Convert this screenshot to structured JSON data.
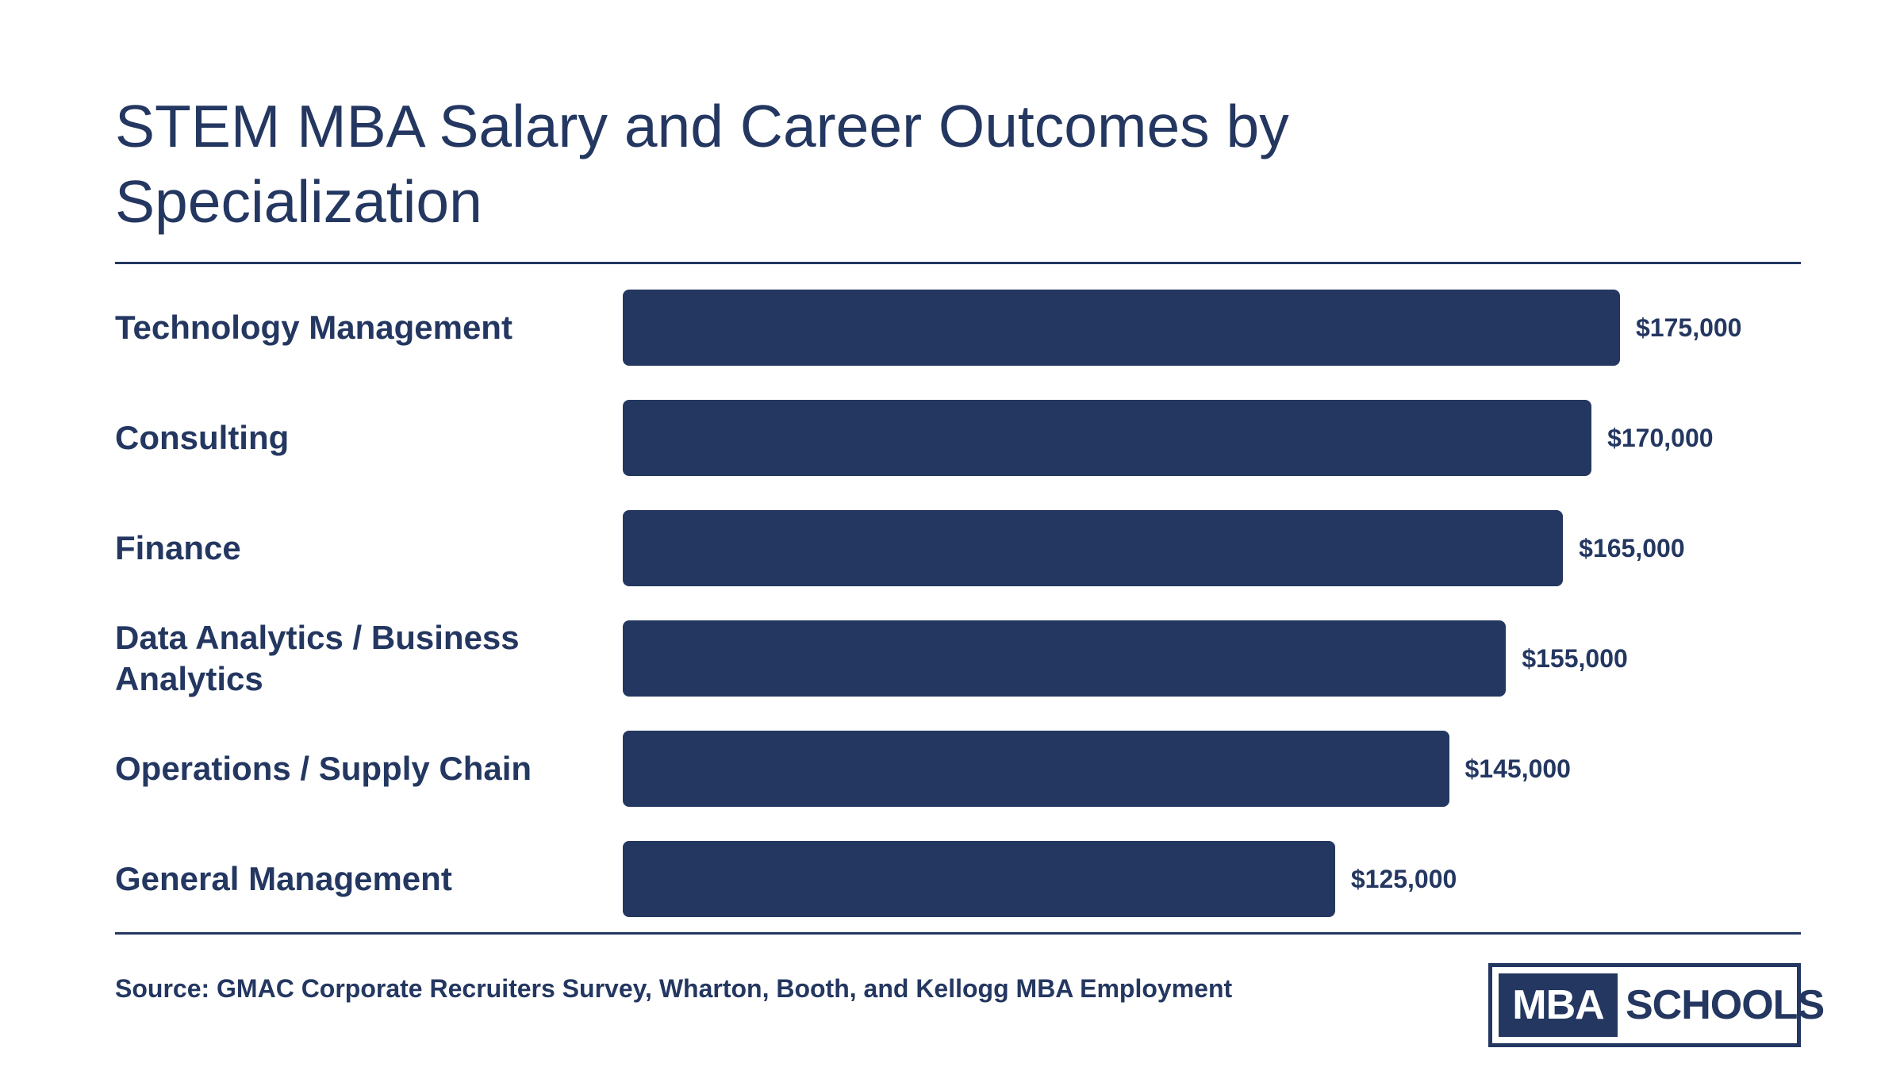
{
  "chart_data": {
    "type": "bar",
    "orientation": "horizontal",
    "title": "STEM MBA Salary and Career Outcomes by Specialization",
    "categories": [
      "Technology Management",
      "Consulting",
      "Finance",
      "Data Analytics / Business Analytics",
      "Operations / Supply Chain",
      "General Management"
    ],
    "values": [
      175000,
      170000,
      165000,
      155000,
      145000,
      125000
    ],
    "value_labels": [
      "$175,000",
      "$170,000",
      "$165,000",
      "$155,000",
      "$145,000",
      "$125,000"
    ],
    "xlim": [
      0,
      175000
    ],
    "grid": false,
    "bar_color": "#243760"
  },
  "source": "Source: GMAC Corporate Recruiters Survey, Wharton, Booth, and Kellogg MBA Employment",
  "logo": {
    "left_text": "MBA",
    "right_text": "SCHOOLS"
  },
  "colors": {
    "primary": "#243760",
    "background": "#ffffff"
  }
}
